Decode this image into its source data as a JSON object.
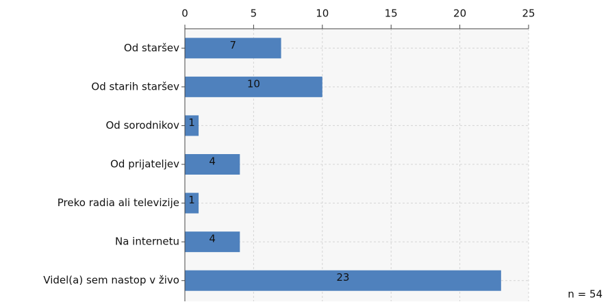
{
  "chart_data": {
    "type": "bar",
    "orientation": "horizontal",
    "categories": [
      "Od staršev",
      "Od starih staršev",
      "Od sorodnikov",
      "Od prijateljev",
      "Preko radia ali televizije",
      "Na internetu",
      "Videl(a) sem nastop v živo"
    ],
    "values": [
      7,
      10,
      1,
      4,
      1,
      4,
      23
    ],
    "color": "#4f81bd",
    "xlim": [
      0,
      25
    ],
    "xticks": [
      0,
      5,
      10,
      15,
      20,
      25
    ],
    "grid": true,
    "annotation": "n = 54"
  }
}
